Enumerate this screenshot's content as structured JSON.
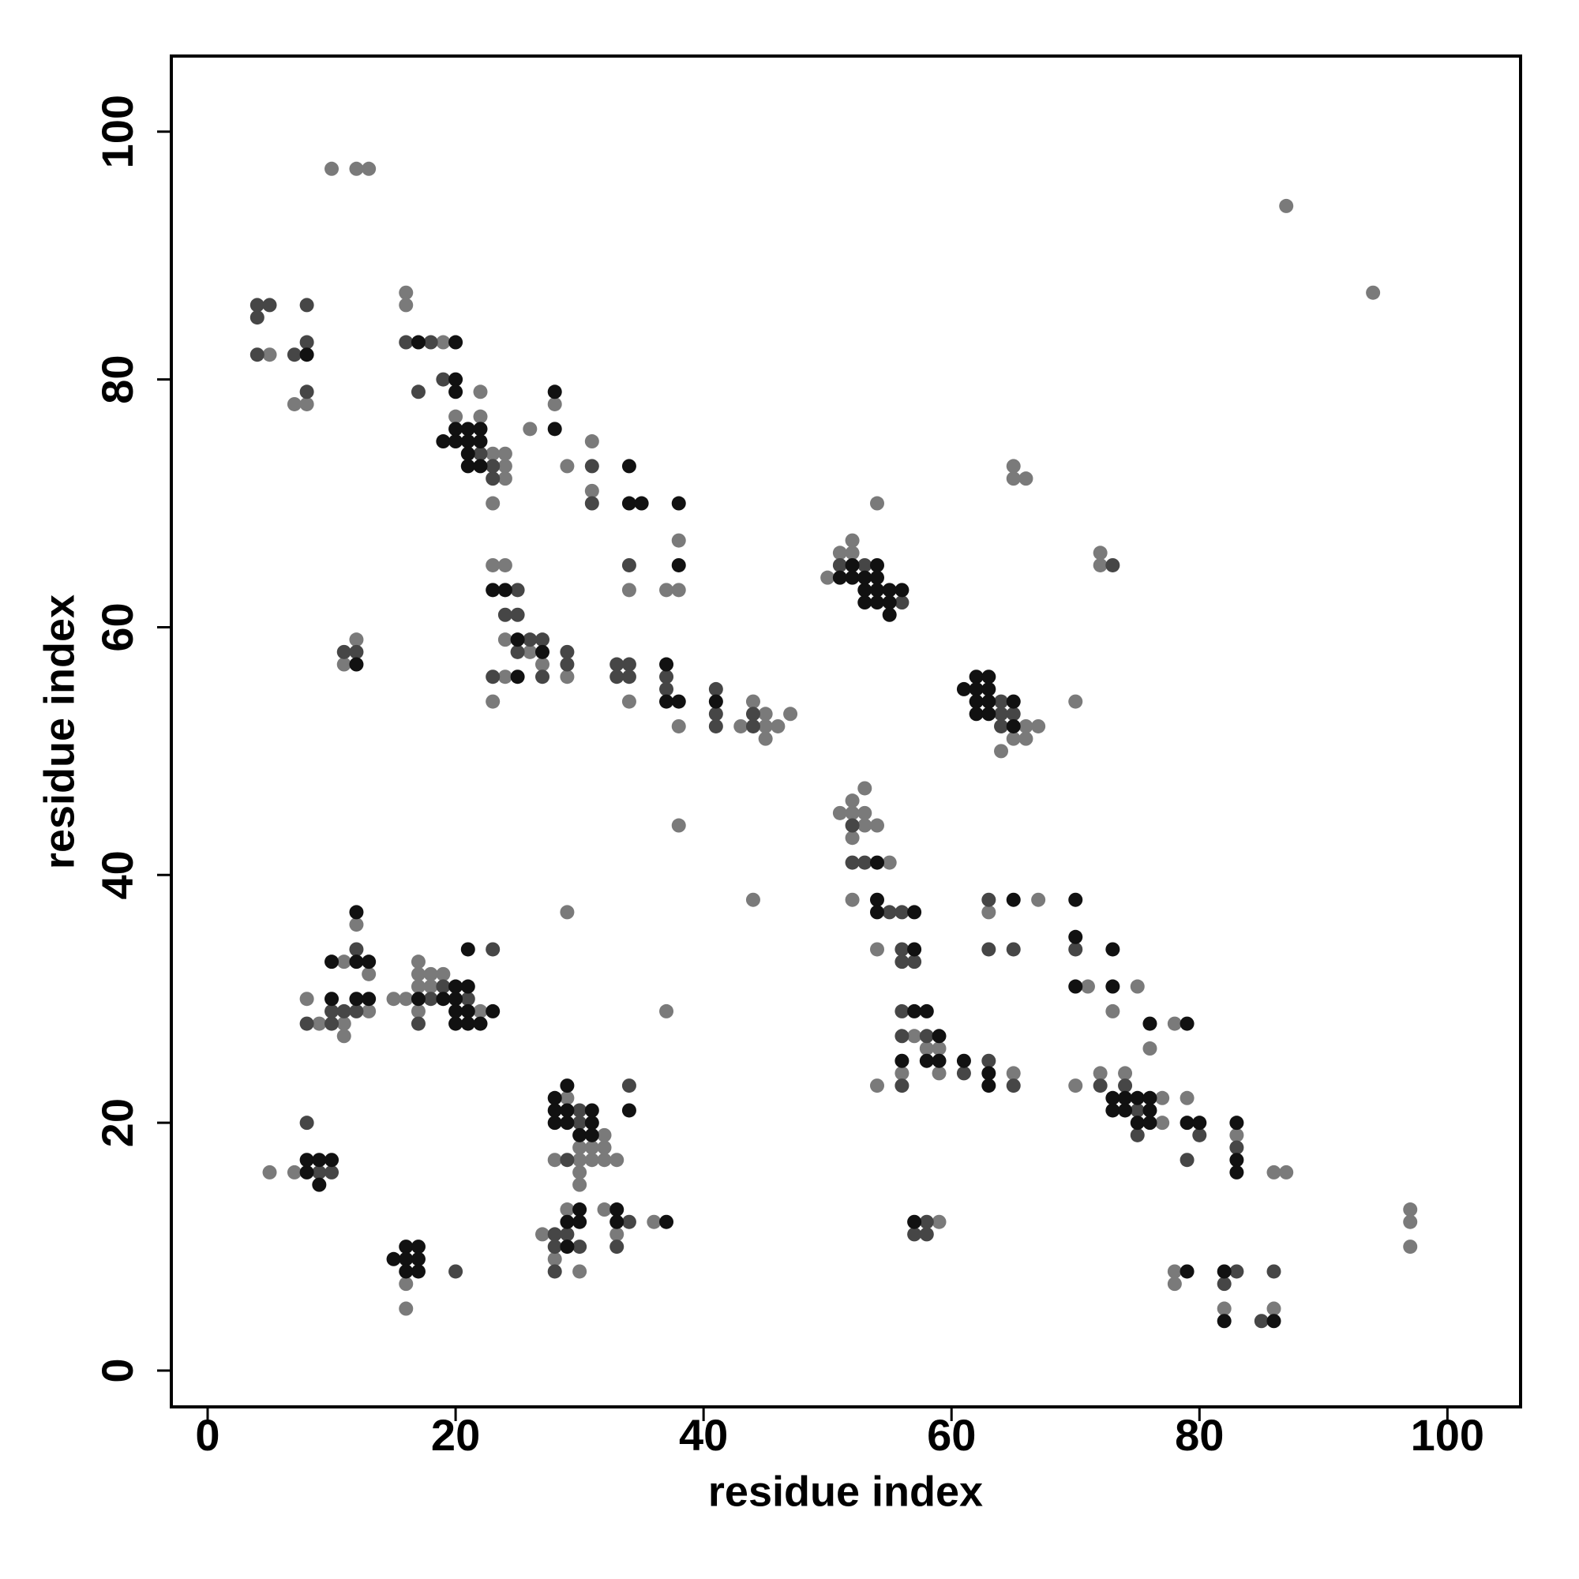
{
  "chart_data": {
    "type": "scatter",
    "x_label": "residue index",
    "y_label": "residue index",
    "xlim": [
      -2.93,
      105.9
    ],
    "ylim": [
      -2.93,
      106.1
    ],
    "xticks": [
      0,
      20,
      40,
      60,
      80,
      100
    ],
    "yticks": [
      0,
      20,
      40,
      60,
      80,
      100
    ],
    "series": [
      {
        "color": "#7a7a7a",
        "x": [
          10,
          12,
          13,
          87,
          94,
          5,
          7,
          8,
          16,
          16,
          19,
          20,
          22,
          22,
          23,
          24,
          24,
          24,
          23,
          26,
          28,
          29,
          31,
          31,
          23,
          24,
          24,
          26,
          24,
          27,
          29,
          23,
          34,
          34,
          37,
          38,
          38,
          38,
          43,
          44,
          45,
          45,
          45,
          46,
          47,
          38,
          12,
          11,
          50,
          51,
          52,
          52,
          54,
          64,
          65,
          66,
          66,
          67,
          65,
          65,
          66,
          72,
          72,
          70,
          51,
          52,
          52,
          52,
          53,
          53,
          53,
          54,
          55,
          52,
          54,
          44,
          63,
          67,
          71,
          75,
          73,
          76,
          78,
          57,
          58,
          59,
          56,
          54,
          59,
          65,
          70,
          72,
          74,
          77,
          77,
          79,
          83,
          86,
          87,
          78,
          78,
          82,
          86,
          97,
          97,
          97,
          59,
          5,
          7,
          8,
          9,
          11,
          11,
          11,
          12,
          13,
          13,
          15,
          16,
          17,
          17,
          17,
          17,
          18,
          18,
          19,
          22,
          16,
          16,
          29,
          30,
          30,
          30,
          30,
          31,
          31,
          32,
          32,
          32,
          33,
          28,
          29,
          27,
          28,
          29,
          30,
          32,
          33,
          36,
          37
        ],
        "values": [
          97,
          97,
          97,
          94,
          87,
          82,
          78,
          78,
          87,
          86,
          83,
          77,
          77,
          79,
          74,
          74,
          73,
          72,
          70,
          76,
          78,
          73,
          75,
          71,
          65,
          65,
          59,
          58,
          56,
          57,
          56,
          54,
          54,
          63,
          63,
          63,
          67,
          52,
          52,
          54,
          53,
          52,
          51,
          52,
          53,
          44,
          59,
          57,
          64,
          66,
          67,
          66,
          70,
          50,
          51,
          52,
          51,
          52,
          73,
          72,
          72,
          66,
          65,
          54,
          45,
          46,
          45,
          43,
          47,
          45,
          44,
          44,
          41,
          38,
          34,
          38,
          37,
          38,
          31,
          31,
          29,
          26,
          28,
          27,
          26,
          26,
          24,
          23,
          24,
          24,
          23,
          24,
          24,
          22,
          20,
          22,
          19,
          16,
          16,
          8,
          7,
          5,
          5,
          13,
          12,
          10,
          12,
          16,
          16,
          30,
          28,
          33,
          28,
          27,
          36,
          32,
          29,
          30,
          30,
          33,
          32,
          31,
          29,
          32,
          31,
          32,
          29,
          7,
          5,
          22,
          18,
          17,
          16,
          15,
          18,
          17,
          19,
          18,
          17,
          17,
          17,
          37,
          11,
          9,
          13,
          8,
          13,
          11,
          12,
          29
        ]
      },
      {
        "color": "#464646",
        "x": [
          4,
          5,
          4,
          4,
          7,
          8,
          8,
          8,
          16,
          18,
          17,
          19,
          22,
          23,
          23,
          31,
          31,
          25,
          24,
          25,
          25,
          26,
          27,
          23,
          27,
          29,
          29,
          33,
          34,
          33,
          34,
          34,
          37,
          37,
          41,
          41,
          41,
          44,
          44,
          11,
          12,
          51,
          53,
          56,
          64,
          64,
          64,
          65,
          73,
          52,
          52,
          53,
          55,
          56,
          56,
          56,
          57,
          63,
          63,
          65,
          70,
          56,
          56,
          58,
          56,
          61,
          63,
          65,
          72,
          74,
          75,
          75,
          80,
          79,
          83,
          83,
          82,
          85,
          86,
          58,
          57,
          58,
          9,
          10,
          8,
          8,
          10,
          10,
          11,
          12,
          12,
          17,
          18,
          19,
          21,
          23,
          20,
          30,
          30,
          29,
          34,
          28,
          28,
          28,
          29,
          30,
          33,
          34
        ],
        "values": [
          86,
          86,
          85,
          82,
          82,
          83,
          86,
          79,
          83,
          83,
          79,
          80,
          74,
          73,
          72,
          73,
          70,
          63,
          61,
          61,
          58,
          59,
          59,
          56,
          56,
          58,
          57,
          57,
          57,
          56,
          56,
          65,
          56,
          55,
          55,
          53,
          52,
          53,
          52,
          58,
          58,
          65,
          65,
          62,
          54,
          53,
          52,
          53,
          65,
          44,
          41,
          41,
          37,
          37,
          34,
          33,
          33,
          38,
          34,
          34,
          34,
          29,
          27,
          27,
          23,
          24,
          25,
          23,
          23,
          23,
          21,
          19,
          19,
          17,
          18,
          8,
          7,
          4,
          8,
          12,
          11,
          11,
          16,
          16,
          20,
          28,
          29,
          28,
          29,
          34,
          29,
          28,
          30,
          31,
          30,
          34,
          8,
          21,
          20,
          17,
          23,
          11,
          10,
          8,
          11,
          10,
          10,
          12
        ]
      },
      {
        "color": "#111111",
        "x": [
          8,
          17,
          20,
          20,
          20,
          19,
          20,
          20,
          21,
          21,
          21,
          21,
          22,
          22,
          22,
          28,
          28,
          34,
          34,
          35,
          38,
          23,
          24,
          25,
          27,
          25,
          38,
          37,
          37,
          38,
          41,
          12,
          51,
          52,
          52,
          53,
          53,
          53,
          54,
          54,
          54,
          54,
          55,
          55,
          55,
          56,
          61,
          62,
          62,
          62,
          62,
          63,
          63,
          63,
          63,
          65,
          65,
          54,
          54,
          54,
          57,
          57,
          65,
          70,
          70,
          73,
          70,
          73,
          76,
          79,
          57,
          58,
          59,
          58,
          59,
          56,
          61,
          63,
          63,
          73,
          73,
          74,
          74,
          75,
          75,
          76,
          76,
          76,
          79,
          80,
          83,
          83,
          83,
          79,
          82,
          82,
          86,
          57,
          8,
          8,
          9,
          9,
          10,
          10,
          10,
          12,
          12,
          12,
          13,
          13,
          17,
          19,
          20,
          20,
          20,
          20,
          21,
          21,
          21,
          21,
          22,
          23,
          15,
          16,
          16,
          16,
          17,
          17,
          17,
          28,
          28,
          28,
          29,
          29,
          29,
          30,
          31,
          31,
          31,
          34,
          29,
          29,
          30,
          30,
          33,
          33,
          37
        ],
        "values": [
          82,
          83,
          83,
          80,
          79,
          75,
          75,
          76,
          76,
          75,
          74,
          73,
          76,
          75,
          73,
          79,
          76,
          73,
          70,
          70,
          70,
          63,
          63,
          59,
          58,
          56,
          65,
          57,
          54,
          54,
          54,
          57,
          64,
          65,
          64,
          64,
          63,
          62,
          65,
          64,
          63,
          62,
          63,
          62,
          61,
          63,
          55,
          56,
          55,
          54,
          53,
          56,
          55,
          54,
          53,
          54,
          52,
          41,
          38,
          37,
          37,
          34,
          38,
          38,
          35,
          34,
          31,
          31,
          28,
          28,
          29,
          29,
          27,
          25,
          25,
          25,
          25,
          24,
          23,
          22,
          21,
          22,
          21,
          22,
          20,
          22,
          21,
          20,
          20,
          20,
          20,
          17,
          16,
          8,
          8,
          4,
          4,
          12,
          16,
          17,
          17,
          15,
          17,
          33,
          30,
          37,
          33,
          30,
          33,
          30,
          30,
          30,
          31,
          30,
          29,
          28,
          34,
          31,
          29,
          28,
          28,
          29,
          9,
          10,
          9,
          8,
          10,
          9,
          8,
          22,
          21,
          20,
          23,
          21,
          20,
          19,
          21,
          20,
          19,
          21,
          12,
          10,
          13,
          12,
          13,
          12,
          12
        ]
      }
    ]
  }
}
